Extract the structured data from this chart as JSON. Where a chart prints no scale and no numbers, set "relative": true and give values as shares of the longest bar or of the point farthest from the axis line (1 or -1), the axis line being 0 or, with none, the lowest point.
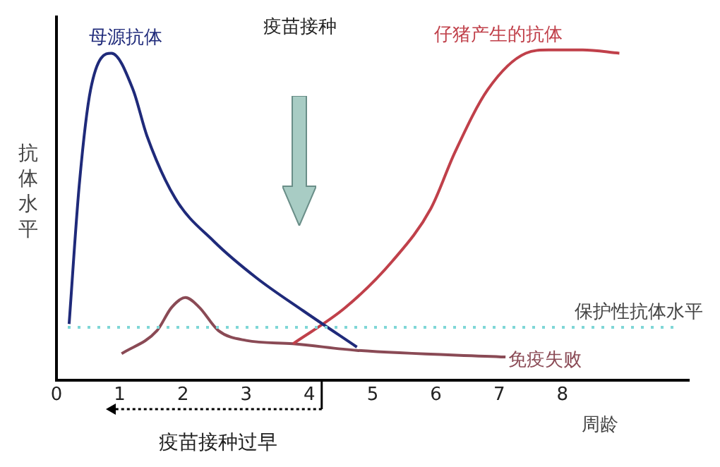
{
  "chart_data": {
    "type": "line",
    "relative": true,
    "xlabel": "周龄",
    "ylabel": "抗体水平",
    "xlim": [
      0,
      10
    ],
    "xticks": [
      0,
      1,
      2,
      3,
      4,
      5,
      6,
      7,
      8
    ],
    "grid": false,
    "legend": false,
    "marker": "none",
    "line_style": "solid",
    "series": [
      {
        "name": "母源抗体",
        "color": "#1f2a7a",
        "x": [
          0.2,
          0.36,
          0.54,
          0.87,
          1.21,
          1.43,
          1.88,
          2.49,
          3.16,
          3.9,
          4.75
        ],
        "values": [
          0.17,
          0.59,
          0.88,
          0.99,
          0.88,
          0.74,
          0.55,
          0.42,
          0.31,
          0.21,
          0.1
        ]
      },
      {
        "name": "仔猪产生的抗体",
        "color": "#c0404a",
        "x": [
          3.74,
          4.57,
          5.31,
          5.92,
          6.3,
          6.82,
          7.42,
          7.78,
          8.32,
          8.9
        ],
        "values": [
          0.11,
          0.22,
          0.36,
          0.52,
          0.69,
          0.88,
          0.99,
          1.0,
          1.0,
          0.99
        ]
      },
      {
        "name": "免疫失败",
        "color": "#8a4a55",
        "x": [
          1.03,
          1.59,
          1.82,
          2.04,
          2.26,
          2.56,
          3.0,
          3.74,
          4.75,
          7.1
        ],
        "values": [
          0.08,
          0.15,
          0.22,
          0.25,
          0.22,
          0.15,
          0.12,
          0.11,
          0.09,
          0.07
        ]
      }
    ],
    "ref_lines": [
      {
        "axis": "y",
        "value": 0.16,
        "label": "保护性抗体水平",
        "color": "#7fd6d6",
        "line_style": "dotted"
      }
    ],
    "annotations": [
      "疫苗接种",
      "疫苗接种过早"
    ]
  }
}
